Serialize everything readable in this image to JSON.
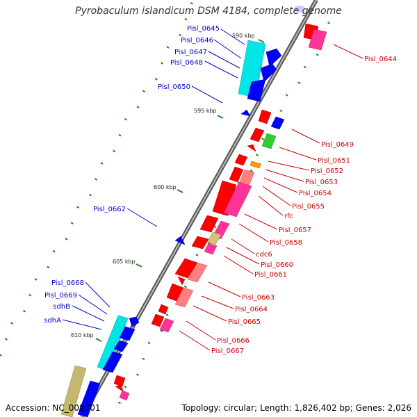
{
  "title": "Pyrobaculum islandicum DSM 4184, complete genome",
  "footer": {
    "accession_label": "Accession:",
    "accession": "NC_008701",
    "topology_label": "Topology:",
    "topology": "circular;",
    "length_label": "Length:",
    "length": "1,826,402 bp;",
    "genes_label": "Genes:",
    "genes": "2,026"
  },
  "colors": {
    "left_label": "#0000cc",
    "right_label": "#cc0000",
    "backbone": "#777777",
    "cds_forward": "#ff0000",
    "cds_reverse": "#0000ff",
    "rna": "#00ffff",
    "pink": "#ff3399",
    "salmon": "#ff8080",
    "green": "#33cc33",
    "orange": "#ff9900",
    "khaki": "#b5b06a",
    "gc_ticks": "#118811"
  },
  "ruler": [
    "590 kbp",
    "595 kbp",
    "600 kbp",
    "605 kbp",
    "610 kbp"
  ],
  "left_labels": [
    "Pisl_0645",
    "Pisl_0646",
    "Pisl_0647",
    "Pisl_0648",
    "Pisl_0650",
    "Pisl_0662",
    "Pisl_0668",
    "Pisl_0669",
    "sdhB",
    "sdhA"
  ],
  "right_labels": [
    "Pisl_0644",
    "Pisl_0649",
    "Pisl_0651",
    "Pisl_0652",
    "Pisl_0653",
    "Pisl_0654",
    "Pisl_0655",
    "rfc",
    "Pisl_0657",
    "Pisl_0658",
    "cdc6",
    "Pisl_0660",
    "Pisl_0661",
    "Pisl_0663",
    "Pisl_0664",
    "Pisl_0665",
    "Pisl_0666",
    "Pisl_0667"
  ]
}
